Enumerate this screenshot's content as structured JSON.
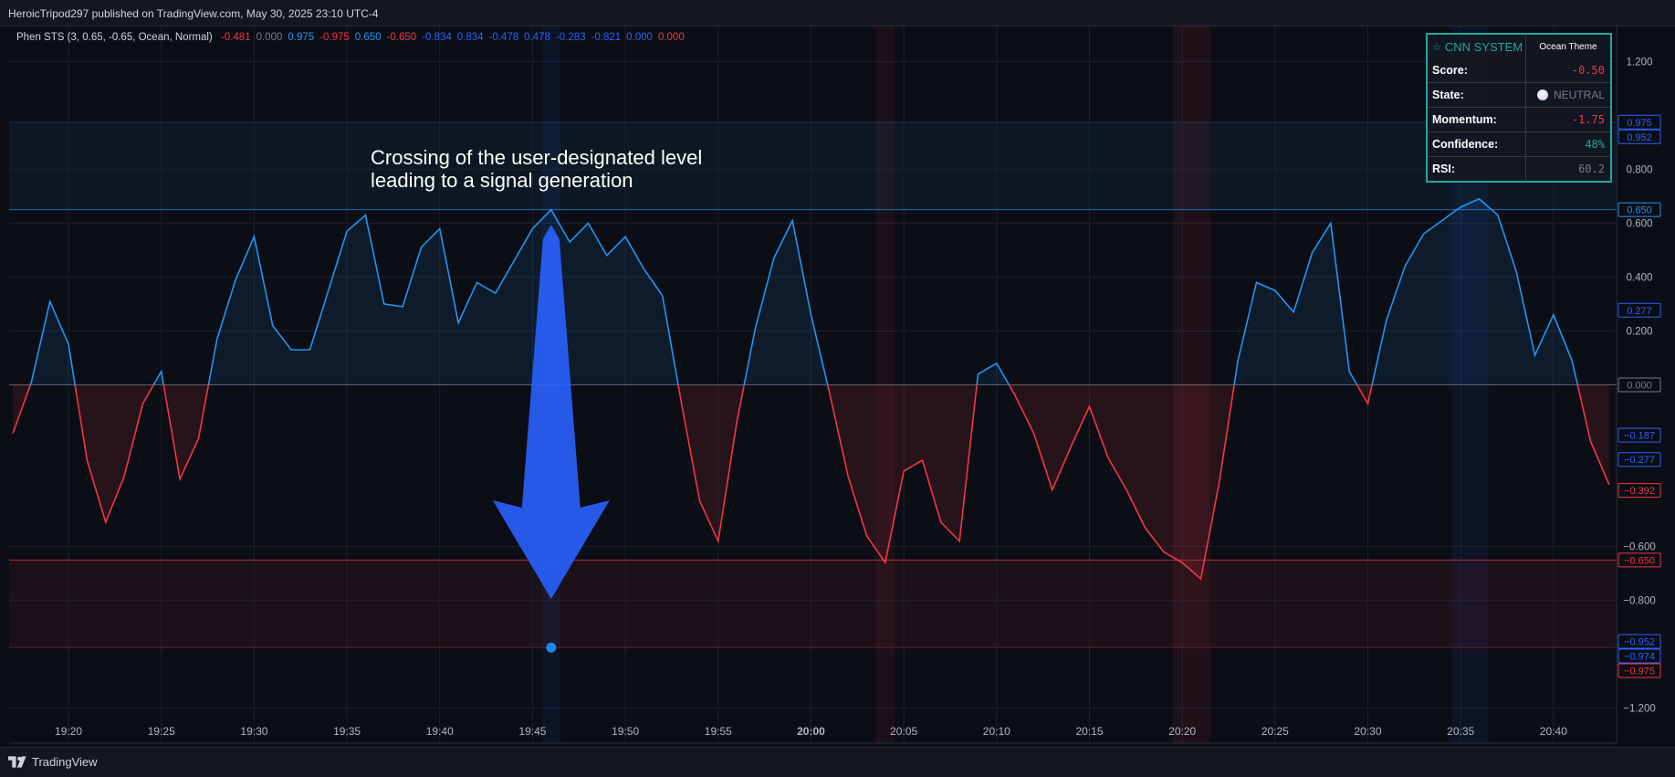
{
  "header": {
    "published_line": "HeroicTripod297 published on TradingView.com, May 30, 2025 23:10 UTC-4"
  },
  "legend": {
    "name": "Phen STS (3, 0.65, -0.65, Ocean, Normal)",
    "values": [
      {
        "text": "-0.481",
        "color": "#f23645"
      },
      {
        "text": "0.000",
        "color": "#787b86"
      },
      {
        "text": "0.975",
        "color": "#2196f3"
      },
      {
        "text": "-0.975",
        "color": "#f23645"
      },
      {
        "text": "0.650",
        "color": "#2196f3"
      },
      {
        "text": "-0.650",
        "color": "#f23645"
      },
      {
        "text": "-0.834",
        "color": "#2962ff"
      },
      {
        "text": "0.834",
        "color": "#2962ff"
      },
      {
        "text": "-0.478",
        "color": "#2962ff"
      },
      {
        "text": "0.478",
        "color": "#2962ff"
      },
      {
        "text": "-0.283",
        "color": "#2962ff"
      },
      {
        "text": "-0.821",
        "color": "#2962ff"
      },
      {
        "text": "0.000",
        "color": "#2962ff"
      },
      {
        "text": "0.000",
        "color": "#f23645"
      }
    ]
  },
  "annotation": {
    "line1": "Crossing of the user-designated level",
    "line2": "leading to a signal generation"
  },
  "cnn_table": {
    "title": "CNN SYSTEM",
    "title_icon": "star-icon",
    "theme": "Ocean Theme",
    "rows": [
      {
        "label": "Score:",
        "value": "-0.50",
        "color": "#f23645"
      },
      {
        "label": "State:",
        "value": "NEUTRAL",
        "color": "#787b86"
      },
      {
        "label": "Momentum:",
        "value": "-1.75",
        "color": "#f23645"
      },
      {
        "label": "Confidence:",
        "value": "48%",
        "color": "#26a69a"
      },
      {
        "label": "RSI:",
        "value": "60.2",
        "color": "#787b86"
      }
    ]
  },
  "footer": {
    "brand": "TradingView"
  },
  "chart_data": {
    "type": "line",
    "title": "",
    "x_ticks": [
      "19:20",
      "19:25",
      "19:30",
      "19:35",
      "19:40",
      "19:45",
      "19:50",
      "19:55",
      "20:00",
      "20:05",
      "20:10",
      "20:15",
      "20:20",
      "20:25",
      "20:30",
      "20:35",
      "20:40"
    ],
    "x_tick_index": [
      3,
      8,
      13,
      18,
      23,
      28,
      33,
      38,
      43,
      48,
      53,
      58,
      63,
      68,
      73,
      78,
      83
    ],
    "y_ticks": [
      "1.200",
      "0.800",
      "0.600",
      "0.400",
      "0.200",
      "0.000",
      "-0.600",
      "-0.800",
      "-1.200"
    ],
    "y_tick_values": [
      1.2,
      0.8,
      0.6,
      0.4,
      0.2,
      0.0,
      -0.6,
      -0.8,
      -1.2
    ],
    "ylim": [
      -1.33,
      1.33
    ],
    "x_range": [
      -0.2,
      86.4
    ],
    "levels": {
      "upper": 0.65,
      "lower": -0.65,
      "outer_upper": 0.975,
      "outer_lower": -0.975
    },
    "series": [
      {
        "values": [
          -0.18,
          0.01,
          0.31,
          0.15,
          -0.28,
          -0.51,
          -0.34,
          -0.07,
          0.05,
          -0.35,
          -0.2,
          0.17,
          0.39,
          0.55,
          0.22,
          0.13,
          0.13,
          0.35,
          0.57,
          0.63,
          0.3,
          0.29,
          0.51,
          0.58,
          0.23,
          0.38,
          0.34,
          0.46,
          0.58,
          0.65,
          0.53,
          0.6,
          0.48,
          0.55,
          0.43,
          0.33,
          -0.06,
          -0.43,
          -0.58,
          -0.14,
          0.21,
          0.47,
          0.61,
          0.26,
          -0.03,
          -0.34,
          -0.56,
          -0.66,
          -0.32,
          -0.28,
          -0.51,
          -0.58,
          0.04,
          0.08,
          -0.04,
          -0.18,
          -0.39,
          -0.23,
          -0.08,
          -0.27,
          -0.39,
          -0.53,
          -0.62,
          -0.66,
          -0.72,
          -0.36,
          0.09,
          0.38,
          0.35,
          0.27,
          0.49,
          0.6,
          0.05,
          -0.07,
          0.24,
          0.44,
          0.56,
          0.61,
          0.66,
          0.69,
          0.63,
          0.42,
          0.11,
          0.26,
          0.09,
          -0.21,
          -0.37
        ]
      }
    ],
    "price_labels": [
      {
        "text": "0.975",
        "value": 0.975,
        "color": "#2962ff"
      },
      {
        "text": "0.952",
        "value": 0.952,
        "color": "#2962ff"
      },
      {
        "text": "0.650",
        "value": 0.65,
        "color": "#2196f3"
      },
      {
        "text": "0.277",
        "value": 0.277,
        "color": "#2962ff"
      },
      {
        "text": "0.000",
        "value": 0.0,
        "color": "#787b86"
      },
      {
        "text": "−0.187",
        "value": -0.187,
        "color": "#2962ff"
      },
      {
        "text": "−0.277",
        "value": -0.277,
        "color": "#2962ff"
      },
      {
        "text": "−0.392",
        "value": -0.392,
        "color": "#f23645"
      },
      {
        "text": "−0.650",
        "value": -0.65,
        "color": "#f23645"
      },
      {
        "text": "−0.952",
        "value": -0.952,
        "color": "#2962ff"
      },
      {
        "text": "−0.974",
        "value": -0.974,
        "color": "#2962ff"
      },
      {
        "text": "−0.975",
        "value": -0.975,
        "color": "#f23645"
      }
    ],
    "signal_dot": {
      "index": 29,
      "value": -0.975
    },
    "colors": {
      "bull": "#2196f3",
      "bear": "#f23645",
      "arrow": "#2962ff",
      "teal": "#26a69a"
    }
  }
}
